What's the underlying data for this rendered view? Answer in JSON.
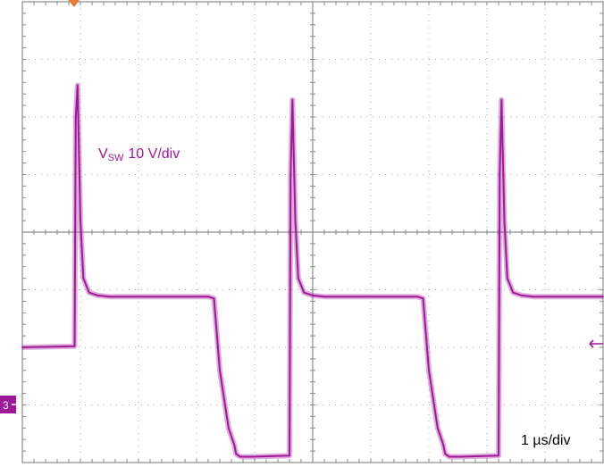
{
  "chart_data": {
    "type": "line",
    "title": "",
    "channel_marker": "3",
    "trace_color": "#a0189a",
    "series": [
      {
        "name": "VSW",
        "label_main": "V",
        "label_sub": "SW",
        "scale_label": "10 V/div",
        "volts_per_div": 10,
        "baseline_div": -2,
        "x_us": [
          0.0,
          0.9,
          0.92,
          0.95,
          1.0,
          1.05,
          1.15,
          1.3,
          1.5,
          3.2,
          3.3,
          3.4,
          3.55,
          3.65,
          3.68,
          3.75,
          3.95,
          4.6,
          4.62,
          4.65,
          4.7,
          4.75,
          4.85,
          5.0,
          5.2,
          6.8,
          6.9,
          7.0,
          7.15,
          7.25,
          7.28,
          7.35,
          7.55,
          8.2,
          8.22,
          8.25,
          8.3,
          8.35,
          8.45,
          8.6,
          8.8,
          10.0
        ],
        "y_v": [
          0.0,
          0.2,
          40.0,
          45.5,
          22.0,
          12.0,
          9.5,
          9.0,
          8.8,
          8.8,
          8.5,
          -4.0,
          -14.0,
          -17.0,
          -18.5,
          -19.0,
          -19.0,
          -18.8,
          30.0,
          43.0,
          22.0,
          12.0,
          9.5,
          9.0,
          8.8,
          8.8,
          8.5,
          -4.0,
          -14.0,
          -17.0,
          -18.5,
          -19.0,
          -19.0,
          -18.8,
          30.0,
          43.0,
          22.0,
          12.0,
          9.5,
          9.0,
          8.8,
          8.8
        ]
      }
    ],
    "time_scale_label": "1 µs/div",
    "x_range_us": [
      0,
      10
    ],
    "y_range_div": [
      -4,
      4
    ],
    "grid": true
  }
}
